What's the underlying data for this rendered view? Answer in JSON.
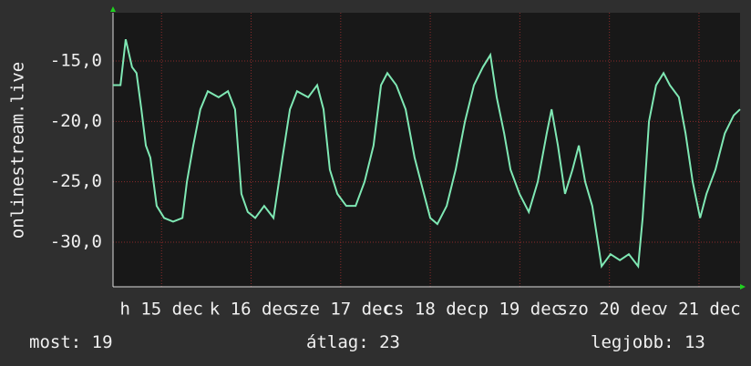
{
  "chart_data": {
    "type": "line",
    "ylabel": "onlinestream.live",
    "x": [
      0,
      2,
      3.4,
      5.1,
      6.3,
      7.6,
      8.8,
      10,
      11.7,
      13.7,
      16.1,
      18.6,
      19.8,
      21.5,
      23.4,
      25.4,
      28.3,
      30.8,
      32.7,
      34.4,
      36.1,
      38.1,
      40.5,
      43,
      45.4,
      47.4,
      49.3,
      52.3,
      54.7,
      56.4,
      58.1,
      60.1,
      62.5,
      65,
      67.4,
      69.8,
      71.8,
      73.5,
      75.9,
      78.4,
      80.8,
      83.3,
      85,
      86.9,
      89.4,
      91.8,
      94.3,
      96.7,
      99.1,
      101.1,
      102.8,
      104.8,
      106.5,
      108.9,
      111.4,
      113.8,
      116.2,
      117.5,
      119.2,
      121.1,
      123.1,
      124.8,
      126.5,
      128.4,
      130.9,
      133.3,
      135.8,
      138.2,
      140.7,
      141.9,
      143.6,
      145.5,
      147.5,
      149.2,
      151.6,
      153.4,
      155.3,
      157.3,
      159,
      161.4,
      163.9,
      166.3,
      168
    ],
    "series": [
      {
        "name": "onlinestream.live",
        "color": "#7fe8b4",
        "values": [
          -17,
          -17,
          -13.2,
          -15.5,
          -16,
          -19,
          -22,
          -23,
          -27,
          -28,
          -28.3,
          -28,
          -25,
          -22,
          -19,
          -17.5,
          -18,
          -17.5,
          -19,
          -26,
          -27.5,
          -28,
          -27,
          -28,
          -23,
          -19,
          -17.5,
          -18,
          -17,
          -19,
          -24,
          -26,
          -27,
          -27,
          -25,
          -22,
          -17,
          -16,
          -17,
          -19,
          -23,
          -26,
          -28,
          -28.5,
          -27,
          -24,
          -20,
          -17,
          -15.5,
          -14.5,
          -18,
          -21,
          -24,
          -26,
          -27.5,
          -25,
          -21,
          -19,
          -22,
          -26,
          -24,
          -22,
          -25,
          -27,
          -32,
          -31,
          -31.5,
          -31,
          -32,
          -28,
          -20,
          -17,
          -16,
          -17,
          -18,
          -21,
          -25,
          -28,
          -26,
          -24,
          -21,
          -19.5,
          -19
        ]
      }
    ],
    "xlim": [
      0,
      168
    ],
    "xticks": [
      {
        "value": 13,
        "label": "h 15 dec"
      },
      {
        "value": 37,
        "label": "k 16 dec"
      },
      {
        "value": 61,
        "label": "sze 17 dec"
      },
      {
        "value": 85,
        "label": "cs 18 dec"
      },
      {
        "value": 109,
        "label": "p 19 dec"
      },
      {
        "value": 133,
        "label": "szo 20 dec"
      },
      {
        "value": 157,
        "label": "v 21 dec"
      }
    ],
    "ylim": [
      -33.7,
      -11
    ],
    "yticks": [
      {
        "value": -15,
        "label": "-15,0"
      },
      {
        "value": -20,
        "label": "-20,0"
      },
      {
        "value": -25,
        "label": "-25,0"
      },
      {
        "value": -30,
        "label": "-30,0"
      }
    ],
    "grid": true,
    "footer": [
      "most: 19",
      "átlag: 23",
      "legjobb: 13"
    ]
  }
}
